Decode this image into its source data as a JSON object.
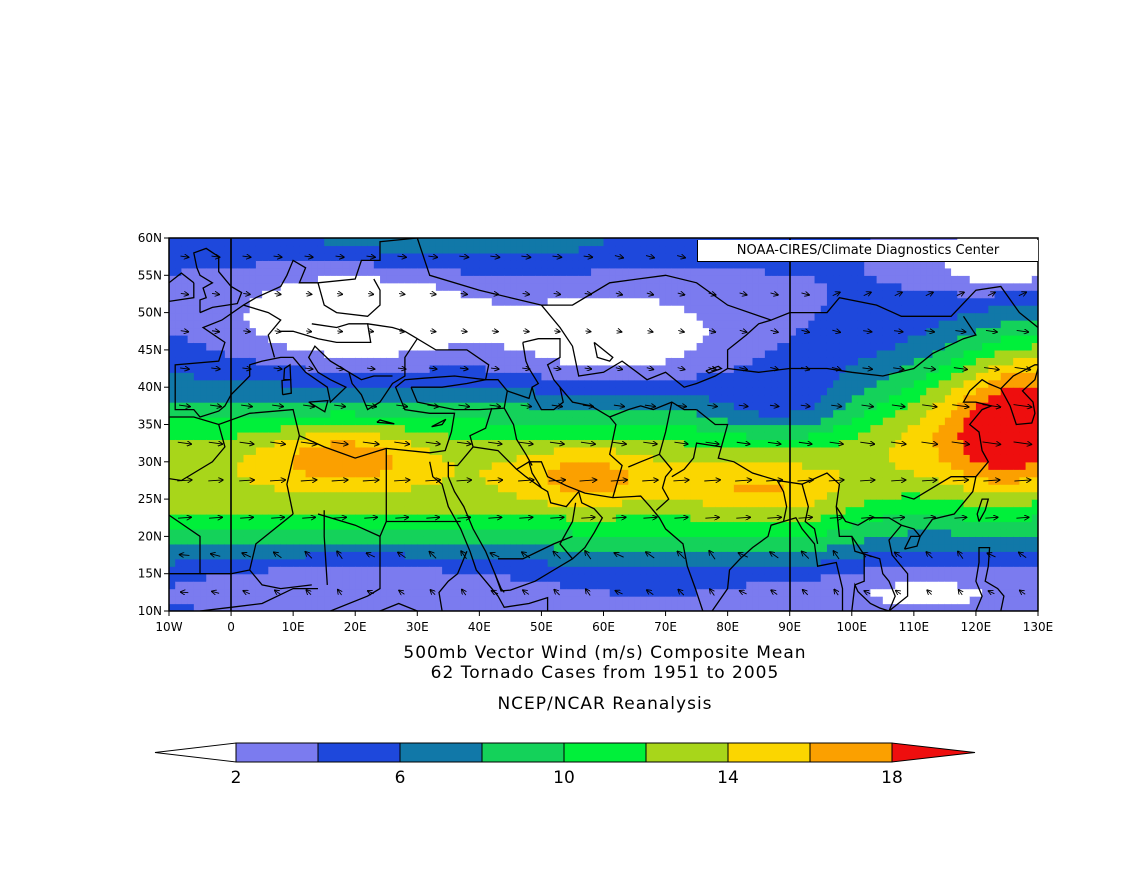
{
  "credit": "NOAA-CIRES/Climate Diagnostics Center",
  "caption": {
    "line1": "500mb Vector Wind (m/s) Composite Mean",
    "line2": "62 Tornado Cases from 1951 to 2005",
    "line3": "NCEP/NCAR Reanalysis"
  },
  "map": {
    "lon_range": [
      -10,
      130
    ],
    "lat_range": [
      10,
      60
    ],
    "lon_ticks": [
      "10W",
      "0",
      "10E",
      "20E",
      "30E",
      "40E",
      "50E",
      "60E",
      "70E",
      "80E",
      "90E",
      "100E",
      "110E",
      "120E",
      "130E"
    ],
    "lat_ticks": [
      "10N",
      "15N",
      "20N",
      "25N",
      "30N",
      "35N",
      "40N",
      "45N",
      "50N",
      "55N",
      "60N"
    ],
    "reference_meridians": [
      0,
      90
    ]
  },
  "colorbar": {
    "levels": [
      2,
      4,
      6,
      8,
      10,
      12,
      14,
      16,
      18
    ],
    "labels": [
      "2",
      "6",
      "10",
      "14",
      "18"
    ],
    "colors": [
      "#ffffff",
      "#7b7bef",
      "#1e48dc",
      "#1178a8",
      "#14d25a",
      "#00f03a",
      "#a8d61a",
      "#fbd600",
      "#fba000",
      "#ee0e0e"
    ]
  }
}
